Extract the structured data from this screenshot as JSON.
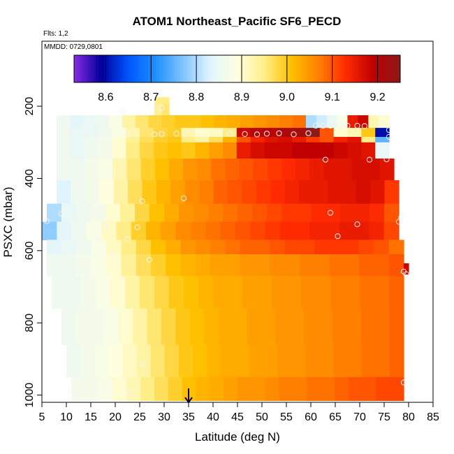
{
  "chart_data": {
    "type": "heatmap",
    "title": "ATOM1 Northeast_Pacific SF6_PECD",
    "flights_note": "Flts: 1,2",
    "dates_note": "MMDD: 0729,0801",
    "xlabel": "Latitude (deg N)",
    "ylabel": "PSXC (mbar)",
    "xlim": [
      5,
      85
    ],
    "ylim": [
      1020,
      20
    ],
    "y_reversed": true,
    "xticks": [
      5,
      10,
      15,
      20,
      25,
      30,
      35,
      40,
      45,
      50,
      55,
      60,
      65,
      70,
      75,
      80,
      85
    ],
    "yticks": [
      200,
      400,
      600,
      800,
      1000
    ],
    "colorbar": {
      "range": [
        8.53,
        9.25
      ],
      "ticks": [
        8.6,
        8.7,
        8.8,
        8.9,
        9.0,
        9.1,
        9.2
      ],
      "colors": [
        "#8a2be2",
        "#000099",
        "#0055ff",
        "#1e90ff",
        "#7fc4ff",
        "#e0f4ff",
        "#ffffe0",
        "#ffee88",
        "#ffc000",
        "#ff8000",
        "#ff2a00",
        "#c00000",
        "#8b1a1a"
      ]
    },
    "arrow_latitude": 35,
    "grid": false,
    "rows": [
      {
        "p_top": 175,
        "p_bot": 195,
        "start": 28,
        "end": 31,
        "values": [
          8.95,
          8.95
        ]
      },
      {
        "p_top": 195,
        "p_bot": 225,
        "start": 28,
        "end": 31,
        "values": [
          8.94,
          8.96
        ]
      },
      {
        "p_top": 225,
        "p_bot": 260,
        "start": 8,
        "end": 59,
        "values": [
          8.86,
          8.84,
          8.85,
          8.86,
          8.88,
          8.93,
          8.96,
          8.98,
          8.99,
          9.0,
          9.0,
          9.01,
          9.02,
          9.03,
          9.04,
          9.05,
          9.06,
          9.07,
          9.08
        ]
      },
      {
        "p_top": 225,
        "p_bot": 260,
        "start": 59,
        "end": 76,
        "values": [
          8.8,
          8.82,
          8.85,
          8.88,
          9.15,
          9.18,
          8.92,
          8.9
        ]
      },
      {
        "p_top": 260,
        "p_bot": 285,
        "start": 8,
        "end": 76,
        "values": [
          8.86,
          8.85,
          8.85,
          8.86,
          8.88,
          8.92,
          8.96,
          8.98,
          8.99,
          8.92,
          8.9,
          8.91,
          8.95,
          9.18,
          9.2,
          9.2,
          9.21,
          9.22,
          9.25,
          9.1,
          8.9,
          8.92,
          9.0,
          8.6
        ]
      },
      {
        "p_top": 285,
        "p_bot": 300,
        "start": 8,
        "end": 76,
        "values": [
          8.86,
          8.85,
          8.86,
          8.87,
          8.9,
          8.94,
          8.97,
          8.99,
          9.0,
          8.95,
          8.93,
          8.97,
          9.02,
          9.1,
          9.14,
          9.16,
          9.17,
          9.15,
          9.12,
          9.1,
          9.14,
          9.16,
          8.95,
          8.75
        ]
      },
      {
        "p_top": 300,
        "p_bot": 345,
        "start": 8,
        "end": 76,
        "values": [
          8.86,
          8.85,
          8.86,
          8.87,
          8.9,
          8.95,
          8.98,
          9.0,
          9.01,
          9.0,
          9.02,
          9.04,
          9.06,
          9.15,
          9.17,
          9.18,
          9.18,
          9.19,
          9.19,
          9.19,
          9.18,
          9.17,
          9.16,
          8.85
        ]
      },
      {
        "p_top": 345,
        "p_bot": 405,
        "start": 8,
        "end": 77,
        "values": [
          8.86,
          8.86,
          8.87,
          8.88,
          8.92,
          8.96,
          8.99,
          9.01,
          9.03,
          9.05,
          9.06,
          9.08,
          9.09,
          9.1,
          9.11,
          9.12,
          9.13,
          9.14,
          9.15,
          9.16,
          9.16,
          9.17,
          9.17,
          9.16
        ]
      },
      {
        "p_top": 405,
        "p_bot": 470,
        "start": 8,
        "end": 78,
        "values": [
          8.83,
          8.86,
          8.87,
          8.89,
          8.93,
          8.97,
          9.0,
          9.02,
          9.04,
          9.06,
          9.07,
          9.09,
          9.1,
          9.11,
          9.12,
          9.13,
          9.14,
          9.15,
          9.15,
          9.16,
          9.16,
          9.17,
          9.16,
          9.12
        ]
      },
      {
        "p_top": 470,
        "p_bot": 520,
        "start": 6,
        "end": 78,
        "values": [
          8.8,
          8.85,
          8.86,
          8.87,
          8.9,
          8.94,
          8.98,
          9.01,
          9.03,
          9.05,
          9.06,
          9.07,
          9.08,
          9.09,
          9.1,
          9.11,
          9.12,
          9.12,
          9.13,
          9.13,
          9.14,
          9.14,
          9.13,
          9.1
        ]
      },
      {
        "p_top": 520,
        "p_bot": 570,
        "start": 5,
        "end": 78,
        "values": [
          8.78,
          8.84,
          8.86,
          8.88,
          8.91,
          8.95,
          8.99,
          9.02,
          9.04,
          9.06,
          9.07,
          9.08,
          9.09,
          9.1,
          9.11,
          9.12,
          9.13,
          9.13,
          9.14,
          9.14,
          9.15,
          9.15,
          9.14,
          9.11
        ]
      },
      {
        "p_top": 570,
        "p_bot": 610,
        "start": 6,
        "end": 79,
        "values": [
          8.84,
          8.85,
          8.86,
          8.88,
          8.91,
          8.95,
          8.98,
          9.01,
          9.03,
          9.05,
          9.06,
          9.07,
          9.08,
          9.09,
          9.09,
          9.1,
          9.11,
          9.11,
          9.12,
          9.12,
          9.12,
          9.11,
          9.1,
          9.08
        ]
      },
      {
        "p_top": 610,
        "p_bot": 670,
        "start": 6,
        "end": 79,
        "values": [
          8.86,
          8.86,
          8.87,
          8.88,
          8.9,
          8.94,
          8.97,
          8.99,
          9.01,
          9.02,
          9.03,
          9.04,
          9.04,
          9.05,
          9.05,
          9.06,
          9.06,
          9.07,
          9.07,
          9.08,
          9.08,
          9.09,
          9.09,
          9.1
        ]
      },
      {
        "p_top": 670,
        "p_bot": 760,
        "start": 7,
        "end": 79,
        "values": [
          8.86,
          8.86,
          8.87,
          8.88,
          8.9,
          8.93,
          8.96,
          8.98,
          9.0,
          9.01,
          9.02,
          9.03,
          9.03,
          9.04,
          9.04,
          9.05,
          9.05,
          9.06,
          9.06,
          9.07,
          9.07,
          9.08,
          9.08,
          9.09
        ]
      },
      {
        "p_top": 760,
        "p_bot": 860,
        "start": 9,
        "end": 79,
        "values": [
          8.86,
          8.87,
          8.87,
          8.88,
          8.9,
          8.93,
          8.96,
          8.98,
          9.0,
          9.01,
          9.02,
          9.03,
          9.03,
          9.04,
          9.04,
          9.05,
          9.05,
          9.06,
          9.06,
          9.07,
          9.07,
          9.08,
          9.08,
          9.09
        ]
      },
      {
        "p_top": 860,
        "p_bot": 950,
        "start": 10,
        "end": 79,
        "values": [
          8.86,
          8.87,
          8.88,
          8.89,
          8.91,
          8.93,
          8.96,
          8.98,
          9.0,
          9.01,
          9.02,
          9.03,
          9.03,
          9.04,
          9.04,
          9.05,
          9.05,
          9.06,
          9.06,
          9.07,
          9.07,
          9.08,
          9.08,
          9.09
        ]
      },
      {
        "p_top": 950,
        "p_bot": 1015,
        "start": 11,
        "end": 79,
        "values": [
          8.87,
          8.87,
          8.88,
          8.9,
          8.92,
          8.95,
          8.97,
          8.99,
          9.01,
          9.02,
          9.03,
          9.04,
          9.05,
          9.05,
          9.06,
          9.07,
          9.07,
          9.08,
          9.08,
          9.09,
          9.1,
          9.1,
          9.11,
          9.11
        ]
      },
      {
        "p_top": 635,
        "p_bot": 665,
        "start": 79,
        "end": 80,
        "values": [
          9.18
        ]
      }
    ],
    "points": [
      {
        "x": 14.5,
        "y": 245
      },
      {
        "x": 21.5,
        "y": 215
      },
      {
        "x": 29.5,
        "y": 205
      },
      {
        "x": 14.0,
        "y": 260
      },
      {
        "x": 22.5,
        "y": 280
      },
      {
        "x": 28.0,
        "y": 278
      },
      {
        "x": 29.5,
        "y": 277
      },
      {
        "x": 32.5,
        "y": 276
      },
      {
        "x": 43.5,
        "y": 276
      },
      {
        "x": 46.5,
        "y": 277
      },
      {
        "x": 49.0,
        "y": 278
      },
      {
        "x": 51.0,
        "y": 276
      },
      {
        "x": 53.5,
        "y": 275
      },
      {
        "x": 56.5,
        "y": 278
      },
      {
        "x": 59.5,
        "y": 275
      },
      {
        "x": 61.0,
        "y": 254
      },
      {
        "x": 62.5,
        "y": 254
      },
      {
        "x": 64.0,
        "y": 254
      },
      {
        "x": 66.0,
        "y": 254
      },
      {
        "x": 67.5,
        "y": 254
      },
      {
        "x": 69.5,
        "y": 254
      },
      {
        "x": 71.0,
        "y": 255
      },
      {
        "x": 74.5,
        "y": 252
      },
      {
        "x": 76.0,
        "y": 266
      },
      {
        "x": 76.0,
        "y": 285
      },
      {
        "x": 63.0,
        "y": 348
      },
      {
        "x": 72.0,
        "y": 348
      },
      {
        "x": 75.5,
        "y": 347
      },
      {
        "x": 34.0,
        "y": 455
      },
      {
        "x": 25.5,
        "y": 463
      },
      {
        "x": 9.0,
        "y": 497
      },
      {
        "x": 64.0,
        "y": 495
      },
      {
        "x": 69.5,
        "y": 527
      },
      {
        "x": 6.0,
        "y": 518
      },
      {
        "x": 12.5,
        "y": 528
      },
      {
        "x": 18.0,
        "y": 532
      },
      {
        "x": 24.5,
        "y": 535
      },
      {
        "x": 65.5,
        "y": 560
      },
      {
        "x": 9.5,
        "y": 590
      },
      {
        "x": 16.5,
        "y": 570
      },
      {
        "x": 22.5,
        "y": 568
      },
      {
        "x": 19.5,
        "y": 608
      },
      {
        "x": 27.0,
        "y": 625
      },
      {
        "x": 78.0,
        "y": 520
      },
      {
        "x": 78.5,
        "y": 508
      },
      {
        "x": 79.0,
        "y": 658
      },
      {
        "x": 79.5,
        "y": 665
      },
      {
        "x": 25.5,
        "y": 915
      },
      {
        "x": 11.0,
        "y": 990
      },
      {
        "x": 18.0,
        "y": 990
      },
      {
        "x": 23.0,
        "y": 993
      },
      {
        "x": 79.0,
        "y": 965
      },
      {
        "x": 17.5,
        "y": 968
      }
    ]
  }
}
